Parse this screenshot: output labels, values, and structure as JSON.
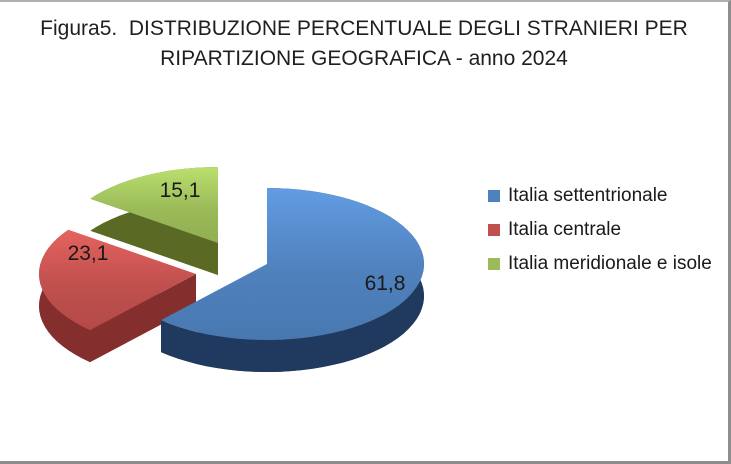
{
  "title": {
    "line1": "Figura5.  DISTRIBUZIONE PERCENTUALE DEGLI STRANIERI PER",
    "line2": "RIPARTIZIONE GEOGRAFICA - anno 2024"
  },
  "chart_data": {
    "type": "pie",
    "style": "3d-exploded",
    "title": "Figura5. DISTRIBUZIONE PERCENTUALE DEGLI STRANIERI PER RIPARTIZIONE GEOGRAFICA - anno 2024",
    "unit": "percent",
    "decimal_separator": ",",
    "start_angle_deg": 0,
    "direction": "clockwise",
    "legend_position": "right",
    "background_color": "#FFFFFF",
    "frame_border_color": "#8D8D8D",
    "label_color": "#1A1A1A",
    "slices": [
      {
        "label": "Italia settentrionale",
        "value": 61.8,
        "display": "61,8",
        "color": "#4F81BD",
        "side_color": "#20395E"
      },
      {
        "label": "Italia centrale",
        "value": 23.1,
        "display": "23,1",
        "color": "#C0504D",
        "side_color": "#842F2D"
      },
      {
        "label": "Italia meridionale e isole",
        "value": 15.1,
        "display": "15,1",
        "color": "#9BBB59",
        "side_color": "#5A6A24"
      }
    ]
  }
}
